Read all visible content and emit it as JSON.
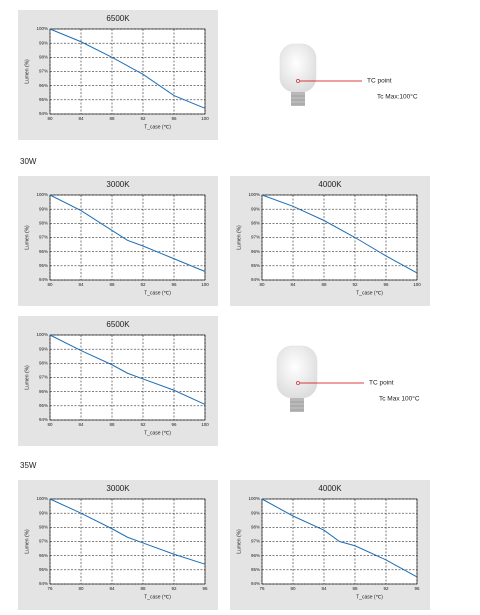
{
  "chart_data": [
    {
      "type": "line",
      "title": "6500K",
      "xlabel": "T_case (℃)",
      "ylabel": "Lumen (%)",
      "x": [
        80,
        84,
        88,
        92,
        96,
        100
      ],
      "series": [
        {
          "color": "#1f6fb5",
          "values": [
            100,
            99.1,
            98.0,
            96.8,
            95.3,
            94.4
          ]
        }
      ],
      "xlim": [
        80,
        100
      ],
      "ylim": [
        94,
        100
      ],
      "xticks": [
        80,
        84,
        88,
        92,
        96,
        100
      ],
      "yticks": [
        {
          "value": 100,
          "label": "100%"
        },
        {
          "value": 99,
          "label": "99%"
        },
        {
          "value": 98,
          "label": "98%"
        },
        {
          "value": 97,
          "label": "97%"
        },
        {
          "value": 96,
          "label": "96%"
        },
        {
          "value": 95,
          "label": "95%"
        },
        {
          "value": 94,
          "label": "94%"
        }
      ],
      "grid": true
    },
    {
      "type": "line",
      "title": "3000K",
      "xlabel": "T_case (℃)",
      "ylabel": "Lumen (%)",
      "x": [
        80,
        84,
        88,
        90,
        92,
        96,
        100
      ],
      "series": [
        {
          "color": "#1f6fb5",
          "values": [
            100,
            98.9,
            97.5,
            96.8,
            96.4,
            95.5,
            94.6
          ]
        }
      ],
      "xlim": [
        80,
        100
      ],
      "ylim": [
        94,
        100
      ],
      "xticks": [
        80,
        84,
        88,
        92,
        96,
        100
      ],
      "yticks": [
        {
          "value": 100,
          "label": "100%"
        },
        {
          "value": 99,
          "label": "99%"
        },
        {
          "value": 98,
          "label": "98%"
        },
        {
          "value": 97,
          "label": "97%"
        },
        {
          "value": 96,
          "label": "96%"
        },
        {
          "value": 95,
          "label": "95%"
        },
        {
          "value": 94,
          "label": "94%"
        }
      ],
      "grid": true
    },
    {
      "type": "line",
      "title": "4000K",
      "xlabel": "T_case (℃)",
      "ylabel": "Lumen (%)",
      "x": [
        80,
        84,
        88,
        92,
        96,
        100
      ],
      "series": [
        {
          "color": "#1f6fb5",
          "values": [
            100,
            99.2,
            98.2,
            97.0,
            95.7,
            94.5
          ]
        }
      ],
      "xlim": [
        80,
        100
      ],
      "ylim": [
        94,
        100
      ],
      "xticks": [
        80,
        84,
        88,
        92,
        96,
        100
      ],
      "yticks": [
        {
          "value": 100,
          "label": "100%"
        },
        {
          "value": 99,
          "label": "99%"
        },
        {
          "value": 98,
          "label": "98%"
        },
        {
          "value": 97,
          "label": "97%"
        },
        {
          "value": 96,
          "label": "96%"
        },
        {
          "value": 95,
          "label": "95%"
        },
        {
          "value": 94,
          "label": "94%"
        }
      ],
      "grid": true
    },
    {
      "type": "line",
      "title": "6500K",
      "xlabel": "T_case (℃)",
      "ylabel": "Lumen (%)",
      "x": [
        80,
        84,
        88,
        90,
        92,
        96,
        100
      ],
      "series": [
        {
          "color": "#1f6fb5",
          "values": [
            100,
            98.9,
            97.9,
            97.3,
            96.9,
            96.1,
            95.1
          ]
        }
      ],
      "xlim": [
        80,
        100
      ],
      "ylim": [
        94,
        100
      ],
      "xticks": [
        80,
        84,
        88,
        92,
        96,
        100
      ],
      "yticks": [
        {
          "value": 100,
          "label": "100%"
        },
        {
          "value": 99,
          "label": "99%"
        },
        {
          "value": 98,
          "label": "98%"
        },
        {
          "value": 97,
          "label": "97%"
        },
        {
          "value": 96,
          "label": "96%"
        },
        {
          "value": 95,
          "label": "95%"
        },
        {
          "value": 94,
          "label": "94%"
        }
      ],
      "grid": true
    },
    {
      "type": "line",
      "title": "3000K",
      "xlabel": "T_case (℃)",
      "ylabel": "Lumen (%)",
      "x": [
        76,
        80,
        84,
        86,
        88,
        92,
        96
      ],
      "series": [
        {
          "color": "#1f6fb5",
          "values": [
            100,
            99.0,
            97.9,
            97.3,
            96.9,
            96.1,
            95.4
          ]
        }
      ],
      "xlim": [
        76,
        96
      ],
      "ylim": [
        94,
        100
      ],
      "xticks": [
        76,
        80,
        84,
        88,
        92,
        96
      ],
      "yticks": [
        {
          "value": 100,
          "label": "100%"
        },
        {
          "value": 99,
          "label": "99%"
        },
        {
          "value": 98,
          "label": "98%"
        },
        {
          "value": 97,
          "label": "97%"
        },
        {
          "value": 96,
          "label": "96%"
        },
        {
          "value": 95,
          "label": "95%"
        },
        {
          "value": 94,
          "label": "94%"
        }
      ],
      "grid": true
    },
    {
      "type": "line",
      "title": "4000K",
      "xlabel": "T_case (℃)",
      "ylabel": "Lumen (%)",
      "x": [
        76,
        80,
        84,
        86,
        88,
        92,
        96
      ],
      "series": [
        {
          "color": "#1f6fb5",
          "values": [
            100,
            98.8,
            97.8,
            97.0,
            96.7,
            95.7,
            94.5
          ]
        }
      ],
      "xlim": [
        76,
        96
      ],
      "ylim": [
        94,
        100
      ],
      "xticks": [
        76,
        80,
        84,
        88,
        92,
        96
      ],
      "yticks": [
        {
          "value": 100,
          "label": "100%"
        },
        {
          "value": 99,
          "label": "99%"
        },
        {
          "value": 98,
          "label": "98%"
        },
        {
          "value": 97,
          "label": "97%"
        },
        {
          "value": 96,
          "label": "96%"
        },
        {
          "value": 95,
          "label": "95%"
        },
        {
          "value": 94,
          "label": "94%"
        }
      ],
      "grid": true
    }
  ],
  "sections": [
    "30W",
    "35W"
  ],
  "notes": [
    {
      "tc": "TC point",
      "max": "Tc Max:100°C"
    },
    {
      "tc": "TC point",
      "max": "Tc Max 100°C"
    }
  ]
}
